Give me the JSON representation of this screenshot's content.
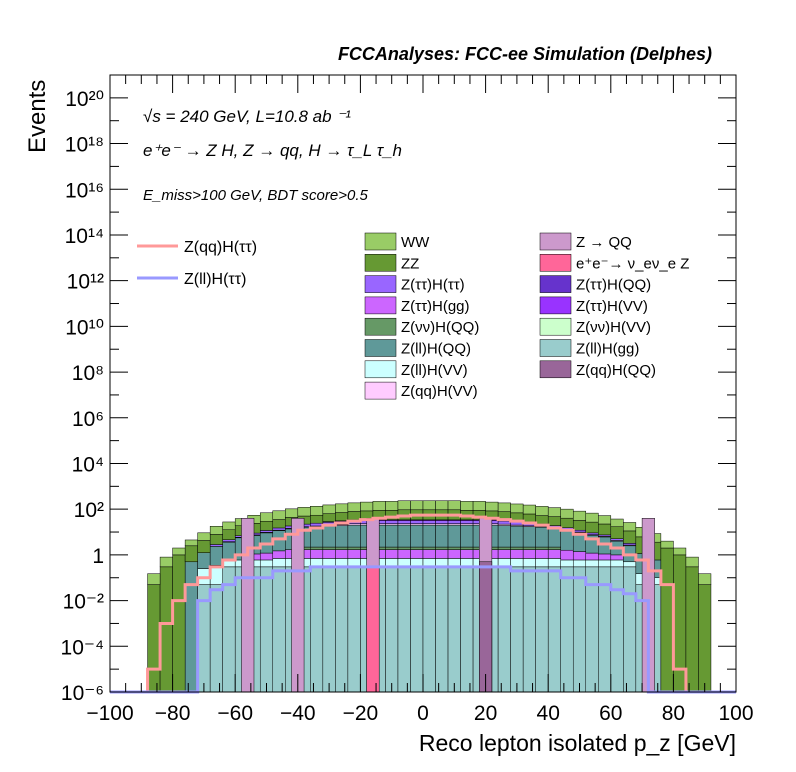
{
  "chart_data": {
    "type": "bar",
    "stacked": true,
    "title": "FCCAnalyses: FCC-ee Simulation (Delphes)",
    "xlabel": "Reco lepton isolated p_z [GeV]",
    "ylabel": "Events",
    "xlim": [
      -100,
      100
    ],
    "ylim": [
      1e-06,
      1e+21
    ],
    "y_log_scale": true,
    "grid": false,
    "legend_position": "top",
    "annotations": {
      "energy": "√s = 240 GeV, L=10.8 ab ⁻¹",
      "process": "e⁺e⁻ → Z H, Z → qq, H → τ_L τ_h",
      "selection": "E_miss>100 GeV, BDT score>0.5"
    },
    "x_ticks": [
      -100,
      -80,
      -60,
      -40,
      -20,
      0,
      20,
      40,
      60,
      80,
      100
    ],
    "y_ticks": [
      {
        "v": 1e-06,
        "label": "10⁻⁶"
      },
      {
        "v": 0.0001,
        "label": "10⁻⁴"
      },
      {
        "v": 0.01,
        "label": "10⁻²"
      },
      {
        "v": 1,
        "label": "1"
      },
      {
        "v": 100.0,
        "label": "10²"
      },
      {
        "v": 10000.0,
        "label": "10⁴"
      },
      {
        "v": 1000000.0,
        "label": "10⁶"
      },
      {
        "v": 100000000.0,
        "label": "10⁸"
      },
      {
        "v": 10000000000.0,
        "label": "10¹⁰"
      },
      {
        "v": 1000000000000.0,
        "label": "10¹²"
      },
      {
        "v": 100000000000000.0,
        "label": "10¹⁴"
      },
      {
        "v": 1e+16,
        "label": "10¹⁶"
      },
      {
        "v": 1e+18,
        "label": "10¹⁸"
      },
      {
        "v": 1e+20,
        "label": "10²⁰"
      }
    ],
    "bin_edges": [
      -100,
      -96,
      -92,
      -88,
      -84,
      -80,
      -76,
      -72,
      -68,
      -64,
      -60,
      -56,
      -52,
      -48,
      -44,
      -40,
      -36,
      -32,
      -28,
      -24,
      -20,
      -16,
      -12,
      -8,
      -4,
      0,
      4,
      8,
      12,
      16,
      20,
      24,
      28,
      32,
      36,
      40,
      44,
      48,
      52,
      56,
      60,
      64,
      68,
      72,
      76,
      80,
      84,
      88,
      92,
      96,
      100
    ],
    "stack_layers": [
      {
        "name": "Z(ll)H(gg)",
        "color": "#99cccc",
        "values": [
          1e-06,
          1e-06,
          1e-06,
          1e-06,
          1e-06,
          1e-06,
          1e-06,
          0.05,
          0.05,
          0.3,
          0.3,
          0.3,
          0.3,
          0.3,
          0.3,
          0.3,
          0.3,
          0.3,
          0.3,
          0.3,
          0.3,
          0.3,
          0.3,
          0.3,
          0.3,
          0.3,
          0.3,
          0.3,
          0.3,
          0.3,
          0.3,
          0.3,
          0.3,
          0.3,
          0.3,
          0.3,
          0.3,
          0.3,
          0.3,
          0.3,
          0.3,
          0.3,
          0.05,
          0.05,
          1e-06,
          1e-06,
          1e-06,
          1e-06,
          1e-06,
          1e-06
        ]
      },
      {
        "name": "Z(ll)H(VV)",
        "color": "#ccffff",
        "values": [
          0,
          0,
          0,
          0,
          0,
          0,
          0,
          0.2,
          0.3,
          0.3,
          0.3,
          0.3,
          0.3,
          0.4,
          0.4,
          0.4,
          0.4,
          0.4,
          0.4,
          0.4,
          0.4,
          0.4,
          0.4,
          0.4,
          0.4,
          0.4,
          0.4,
          0.4,
          0.4,
          0.4,
          0.4,
          0.4,
          0.4,
          0.4,
          0.4,
          0.4,
          0.3,
          0.3,
          0.3,
          0.3,
          0.3,
          0.2,
          0.1,
          0.05,
          0,
          0,
          0,
          0,
          0,
          0
        ]
      },
      {
        "name": "Z(ττ)H(gg)",
        "color": "#cc66ff",
        "values": [
          0,
          0,
          0,
          0,
          0,
          0,
          0,
          0,
          0,
          0,
          0,
          0.5,
          0.6,
          0.8,
          1,
          1,
          1,
          1,
          1,
          1,
          1,
          1,
          1,
          1,
          1,
          1,
          1,
          1,
          1,
          1,
          1,
          1,
          1,
          1,
          1,
          1,
          1,
          0.8,
          0.6,
          0.5,
          0.4,
          0,
          0,
          0,
          0,
          0,
          0,
          0,
          0,
          0
        ]
      },
      {
        "name": "Z(νν)H(QQ)",
        "color": "#669966",
        "values": [
          0,
          0,
          0,
          0,
          0,
          0,
          0,
          0,
          0,
          0,
          0,
          0,
          0,
          0,
          0,
          0.5,
          0.5,
          0.5,
          0.5,
          0.5,
          0.5,
          0.5,
          0.5,
          0.5,
          0.5,
          0.5,
          0.5,
          0.5,
          0.5,
          0.5,
          0.5,
          0.5,
          0.5,
          0.5,
          0.5,
          0.5,
          0,
          0,
          0,
          0,
          0,
          0,
          0,
          0,
          0,
          0,
          0,
          0,
          0,
          0
        ]
      },
      {
        "name": "Z(ll)H(QQ)",
        "color": "#5f9999",
        "values": [
          0,
          0,
          0,
          0,
          0,
          0,
          0.5,
          1,
          2,
          3,
          5,
          6,
          8,
          10,
          12,
          14,
          15,
          16,
          17,
          18,
          18,
          18,
          18,
          18,
          18,
          18,
          18,
          18,
          18,
          18,
          18,
          17,
          16,
          15,
          14,
          12,
          10,
          8,
          6,
          5,
          3,
          2,
          1,
          0.5,
          0,
          0,
          0,
          0,
          0,
          0
        ]
      },
      {
        "name": "Z(qq)H(VV)",
        "color": "#ffccff",
        "values": [
          0,
          0,
          0,
          0,
          0,
          0,
          0,
          0,
          0,
          0.2,
          0.3,
          0.4,
          0.5,
          0.6,
          0.8,
          1,
          1.2,
          1.5,
          2,
          3,
          3,
          3,
          3,
          3,
          3,
          3,
          3,
          3,
          3,
          3,
          3,
          3,
          2,
          1.5,
          1.2,
          1,
          0.8,
          0.6,
          0.5,
          0.4,
          0.3,
          0.2,
          0,
          0,
          0,
          0,
          0,
          0,
          0,
          0
        ]
      },
      {
        "name": "Z(ττ)H(ττ)",
        "color": "#9966ff",
        "values": [
          0,
          0,
          0,
          0,
          0,
          0,
          0,
          0,
          0.5,
          0.8,
          1,
          1.5,
          2,
          3,
          4,
          5,
          6,
          7,
          8,
          8,
          8,
          8,
          8,
          8,
          8,
          8,
          8,
          8,
          8,
          8,
          8,
          8,
          7,
          6,
          5,
          4,
          3,
          2,
          1.5,
          1,
          0.8,
          0.5,
          0,
          0,
          0,
          0,
          0,
          0,
          0,
          0
        ]
      },
      {
        "name": "Z(ττ)H(VV)",
        "color": "#9933ff",
        "values": [
          0,
          0,
          0,
          0,
          0,
          0,
          0,
          0,
          0,
          0,
          0,
          0,
          0,
          0,
          0,
          0,
          0,
          2,
          2,
          3,
          3,
          3,
          3,
          3,
          3,
          3,
          3,
          3,
          3,
          3,
          3,
          3,
          2,
          2,
          0,
          0,
          0,
          0,
          0,
          0,
          0,
          0,
          0,
          0,
          0,
          0,
          0,
          0,
          0,
          0
        ]
      },
      {
        "name": "ZZ",
        "color": "#669933",
        "values": [
          0,
          0,
          0,
          0.05,
          0.3,
          1,
          2,
          3,
          5,
          8,
          12,
          15,
          18,
          20,
          25,
          28,
          30,
          35,
          40,
          45,
          50,
          55,
          55,
          60,
          60,
          60,
          60,
          60,
          55,
          55,
          50,
          45,
          40,
          35,
          30,
          28,
          25,
          20,
          18,
          15,
          12,
          8,
          5,
          3,
          2,
          1,
          0.3,
          0.05,
          0,
          0
        ]
      },
      {
        "name": "WW",
        "color": "#99cc66",
        "values": [
          0,
          0,
          0,
          0.1,
          0.5,
          1,
          2,
          5,
          10,
          15,
          20,
          30,
          40,
          50,
          60,
          70,
          80,
          90,
          100,
          110,
          120,
          130,
          130,
          140,
          140,
          140,
          140,
          140,
          130,
          130,
          120,
          110,
          100,
          90,
          80,
          70,
          60,
          50,
          40,
          30,
          20,
          15,
          10,
          5,
          2,
          1,
          0.5,
          0.1,
          0,
          0
        ]
      }
    ],
    "spikes": [
      {
        "name": "Z → QQ",
        "color": "#cc99cc",
        "x": [
          -56,
          -40,
          -16,
          20,
          72
        ],
        "value": 40
      },
      {
        "name": "e⁺e⁻→ ν_eν_e Z",
        "color": "#ff6699",
        "x": [
          -16,
          20
        ],
        "value": 0.3
      },
      {
        "name": "Z(qq)H(QQ)",
        "color": "#996699",
        "x": [
          20
        ],
        "value": 0.5
      }
    ],
    "series": [
      {
        "name": "Z(qq)H(ττ)",
        "color": "#ff9999",
        "type": "line",
        "values": [
          0,
          0,
          0,
          1e-05,
          0.001,
          0.01,
          0.05,
          0.1,
          0.3,
          0.6,
          1,
          2,
          3,
          5,
          8,
          12,
          15,
          20,
          25,
          30,
          35,
          40,
          45,
          50,
          55,
          55,
          55,
          55,
          50,
          45,
          40,
          35,
          30,
          25,
          20,
          15,
          12,
          8,
          5,
          3,
          2,
          1,
          0.6,
          0.2,
          0.05,
          1e-05,
          0,
          0,
          0,
          0
        ]
      },
      {
        "name": "Z(ll)H(ττ)",
        "color": "#9999ff",
        "type": "line",
        "values": [
          0,
          0,
          0,
          0,
          0,
          0,
          0,
          0.01,
          0.03,
          0.05,
          0.1,
          0.1,
          0.1,
          0.2,
          0.2,
          0.2,
          0.3,
          0.3,
          0.3,
          0.3,
          0.3,
          0.3,
          0.3,
          0.3,
          0.3,
          0.3,
          0.3,
          0.3,
          0.3,
          0.3,
          0.3,
          0.3,
          0.2,
          0.2,
          0.2,
          0.2,
          0.1,
          0.1,
          0.05,
          0.05,
          0.03,
          0.02,
          0.01,
          0,
          0,
          0,
          0,
          0,
          0,
          0
        ]
      }
    ],
    "legend": [
      {
        "name": "WW",
        "color": "#99cc66"
      },
      {
        "name": "Z → QQ",
        "color": "#cc99cc"
      },
      {
        "name": "ZZ",
        "color": "#669933"
      },
      {
        "name": "e⁺e⁻→ ν_eν_e Z",
        "color": "#ff6699"
      },
      {
        "name": "Z(ττ)H(ττ)",
        "color": "#9966ff"
      },
      {
        "name": "Z(ττ)H(QQ)",
        "color": "#6633cc"
      },
      {
        "name": "Z(ττ)H(gg)",
        "color": "#cc66ff"
      },
      {
        "name": "Z(ττ)H(VV)",
        "color": "#9933ff"
      },
      {
        "name": "Z(νν)H(QQ)",
        "color": "#669966"
      },
      {
        "name": "Z(νν)H(VV)",
        "color": "#ccffcc"
      },
      {
        "name": "Z(ll)H(QQ)",
        "color": "#5f9999"
      },
      {
        "name": "Z(ll)H(gg)",
        "color": "#99cccc"
      },
      {
        "name": "Z(ll)H(VV)",
        "color": "#ccffff"
      },
      {
        "name": "Z(qq)H(QQ)",
        "color": "#996699"
      },
      {
        "name": "Z(qq)H(VV)",
        "color": "#ffccff"
      }
    ]
  }
}
